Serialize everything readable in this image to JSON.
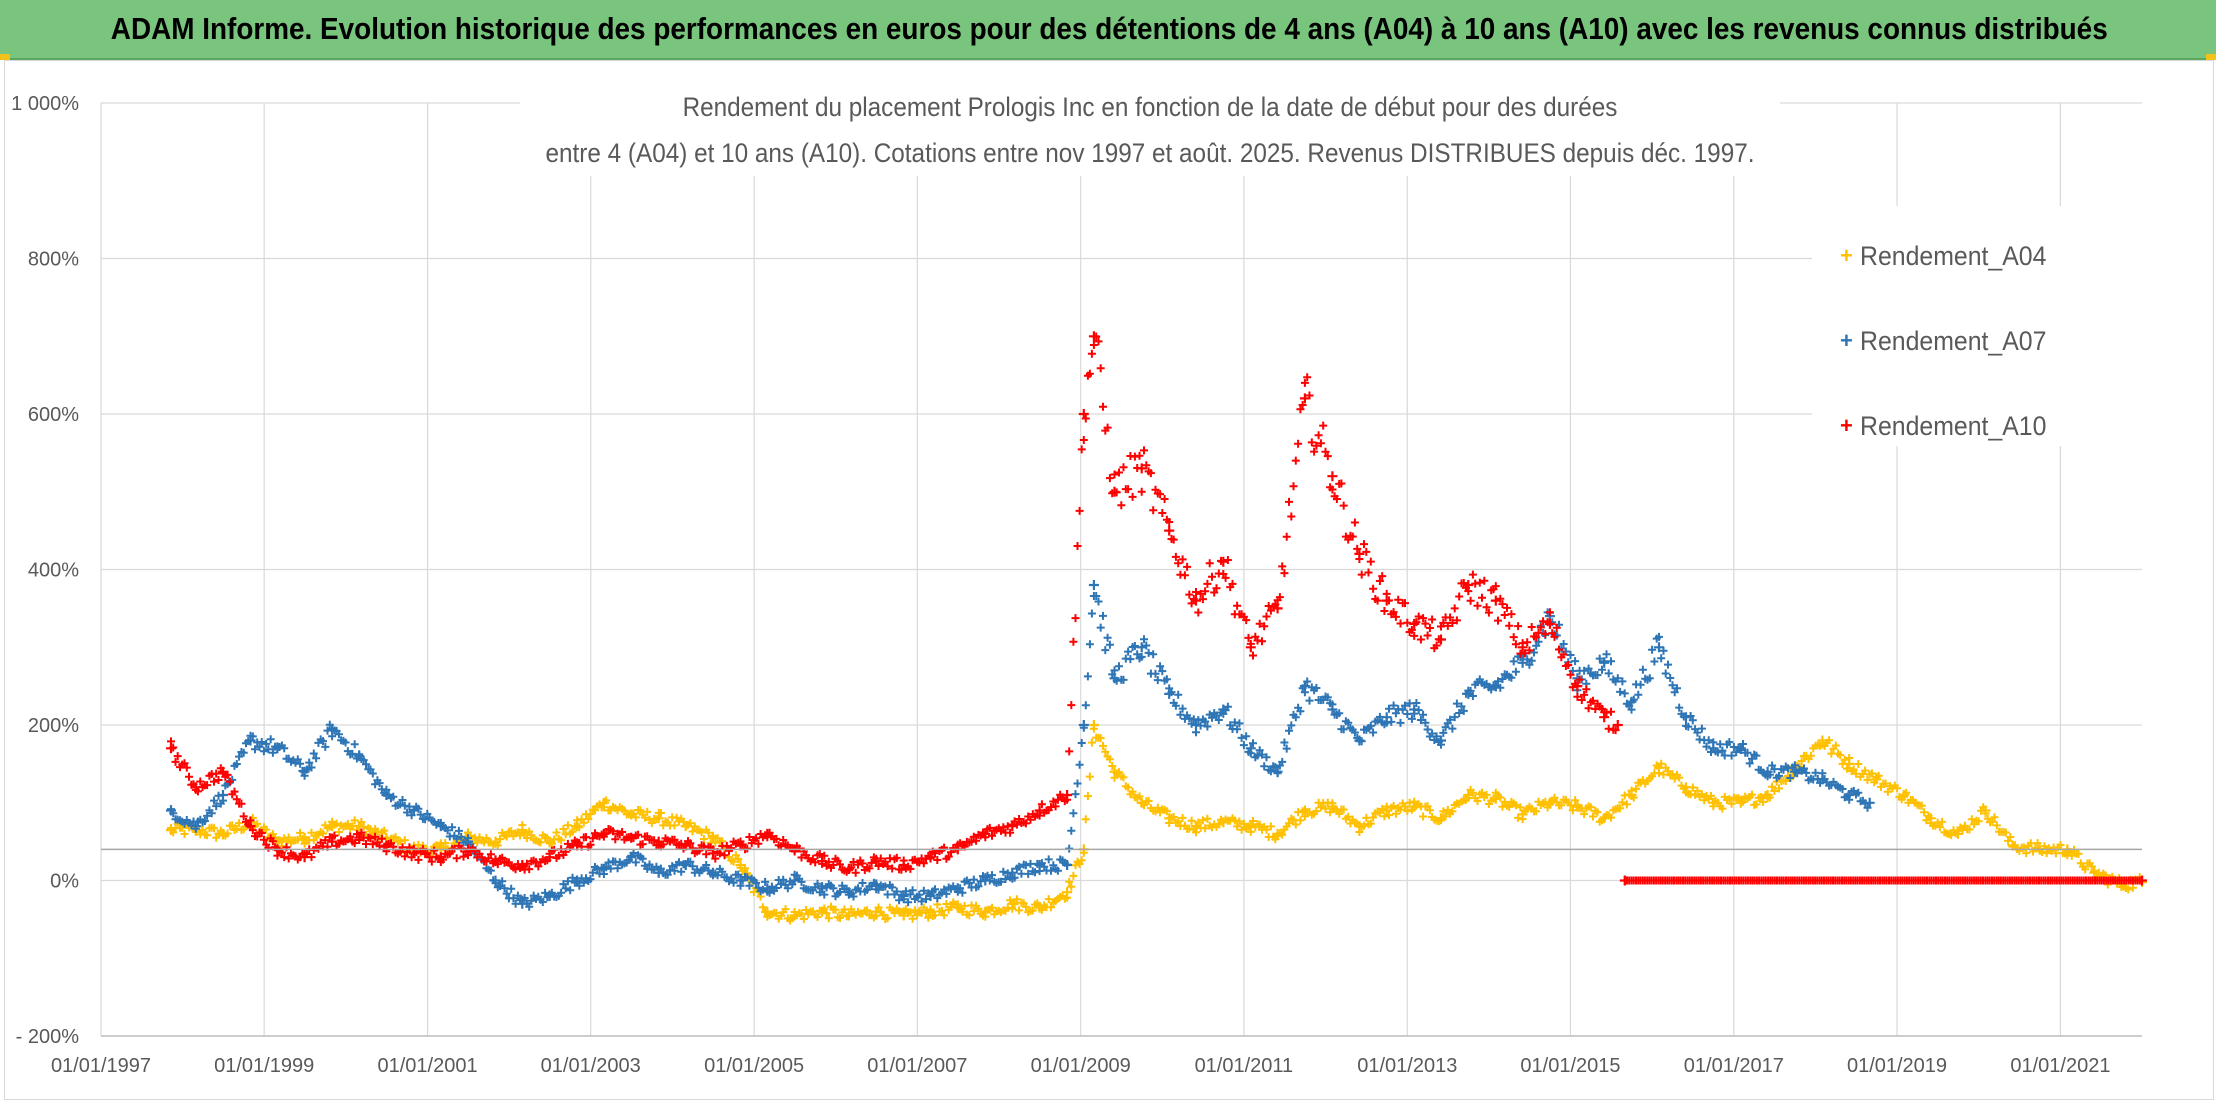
{
  "banner": {
    "title": "ADAM Informe. Evolution historique des performances en euros pour des détentions de 4 ans (A04) à 10 ans (A10) avec les revenus connus distribués"
  },
  "colors": {
    "banner_bg": "#79c57d",
    "series_a04": "#ffc000",
    "series_a07": "#2e75b6",
    "series_a10": "#ff0000",
    "grid": "#d9d9d9",
    "reference_line": "#a6a6a6"
  },
  "chart_data": {
    "type": "scatter",
    "title_line1": "Rendement du placement Prologis Inc en fonction de la date de début pour des durées",
    "title_line2": "entre 4 (A04) et 10 ans (A10). Cotations entre nov 1997 et août. 2025. Revenus DISTRIBUES depuis déc. 1997.",
    "xlabel": "",
    "ylabel": "",
    "x_axis": {
      "type": "date",
      "min": "1997-01-01",
      "max": "2022-01-01",
      "tick_labels": [
        "01/01/1997",
        "01/01/1999",
        "01/01/2001",
        "01/01/2003",
        "01/01/2005",
        "01/01/2007",
        "01/01/2009",
        "01/01/2011",
        "01/01/2013",
        "01/01/2015",
        "01/01/2017",
        "01/01/2019",
        "01/01/2021"
      ]
    },
    "y_axis": {
      "min": -200,
      "max": 1000,
      "unit": "%",
      "tick_values": [
        -200,
        0,
        200,
        400,
        600,
        800,
        1000
      ],
      "tick_labels": [
        "- 200%",
        "0%",
        "200%",
        "400%",
        "600%",
        "800%",
        "1 000%"
      ]
    },
    "grid": true,
    "reference_line_y": 40,
    "legend": {
      "position": "top-right",
      "entries": [
        "Rendement_A04",
        "Rendement_A07",
        "Rendement_A10"
      ]
    },
    "series": [
      {
        "name": "Rendement_A04",
        "color": "#ffc000",
        "points": [
          [
            "1997-11-10",
            65
          ],
          [
            "1998-03-01",
            65
          ],
          [
            "1998-07-01",
            60
          ],
          [
            "1998-11-01",
            75
          ],
          [
            "1999-03-01",
            50
          ],
          [
            "1999-07-01",
            55
          ],
          [
            "1999-11-01",
            70
          ],
          [
            "2000-03-01",
            70
          ],
          [
            "2000-07-01",
            55
          ],
          [
            "2000-11-01",
            40
          ],
          [
            "2001-03-01",
            40
          ],
          [
            "2001-07-01",
            55
          ],
          [
            "2001-11-01",
            50
          ],
          [
            "2002-03-01",
            65
          ],
          [
            "2002-07-01",
            50
          ],
          [
            "2002-11-01",
            70
          ],
          [
            "2003-03-01",
            100
          ],
          [
            "2003-07-01",
            85
          ],
          [
            "2003-11-01",
            80
          ],
          [
            "2004-03-01",
            70
          ],
          [
            "2004-07-01",
            55
          ],
          [
            "2004-11-01",
            20
          ],
          [
            "2005-03-01",
            -40
          ],
          [
            "2005-07-01",
            -45
          ],
          [
            "2005-11-01",
            -40
          ],
          [
            "2006-03-01",
            -45
          ],
          [
            "2006-07-01",
            -40
          ],
          [
            "2006-11-01",
            -45
          ],
          [
            "2007-03-01",
            -40
          ],
          [
            "2007-07-01",
            -35
          ],
          [
            "2007-11-01",
            -40
          ],
          [
            "2008-03-01",
            -30
          ],
          [
            "2008-07-01",
            -35
          ],
          [
            "2008-11-01",
            -15
          ],
          [
            "2009-01-15",
            40
          ],
          [
            "2009-03-01",
            200
          ],
          [
            "2009-06-01",
            140
          ],
          [
            "2009-10-01",
            100
          ],
          [
            "2010-02-01",
            80
          ],
          [
            "2010-06-01",
            70
          ],
          [
            "2010-10-01",
            75
          ],
          [
            "2011-02-01",
            70
          ],
          [
            "2011-06-01",
            60
          ],
          [
            "2011-10-01",
            90
          ],
          [
            "2012-02-01",
            95
          ],
          [
            "2012-06-01",
            70
          ],
          [
            "2012-10-01",
            90
          ],
          [
            "2013-02-01",
            95
          ],
          [
            "2013-06-01",
            80
          ],
          [
            "2013-10-01",
            110
          ],
          [
            "2014-02-01",
            105
          ],
          [
            "2014-06-01",
            85
          ],
          [
            "2014-10-01",
            100
          ],
          [
            "2015-02-01",
            95
          ],
          [
            "2015-06-01",
            80
          ],
          [
            "2015-10-01",
            110
          ],
          [
            "2016-02-01",
            145
          ],
          [
            "2016-06-01",
            120
          ],
          [
            "2016-10-01",
            100
          ],
          [
            "2017-02-01",
            100
          ],
          [
            "2017-06-01",
            110
          ],
          [
            "2017-10-01",
            145
          ],
          [
            "2018-02-01",
            180
          ],
          [
            "2018-06-01",
            150
          ],
          [
            "2018-10-01",
            130
          ],
          [
            "2019-02-01",
            110
          ],
          [
            "2019-06-01",
            80
          ],
          [
            "2019-10-01",
            60
          ],
          [
            "2020-02-01",
            90
          ],
          [
            "2020-06-01",
            45
          ],
          [
            "2020-10-01",
            40
          ],
          [
            "2021-02-01",
            40
          ],
          [
            "2021-06-01",
            10
          ],
          [
            "2021-10-01",
            -5
          ],
          [
            "2022-01-01",
            -2
          ]
        ]
      },
      {
        "name": "Rendement_A07",
        "color": "#2e75b6",
        "points": [
          [
            "1997-11-10",
            90
          ],
          [
            "1998-03-01",
            70
          ],
          [
            "1998-07-01",
            110
          ],
          [
            "1998-11-01",
            180
          ],
          [
            "1999-03-01",
            170
          ],
          [
            "1999-07-01",
            140
          ],
          [
            "1999-11-01",
            195
          ],
          [
            "2000-03-01",
            160
          ],
          [
            "2000-07-01",
            110
          ],
          [
            "2000-11-01",
            90
          ],
          [
            "2001-03-01",
            70
          ],
          [
            "2001-07-01",
            50
          ],
          [
            "2001-11-01",
            0
          ],
          [
            "2002-03-01",
            -30
          ],
          [
            "2002-07-01",
            -20
          ],
          [
            "2002-11-01",
            0
          ],
          [
            "2003-03-01",
            15
          ],
          [
            "2003-07-01",
            30
          ],
          [
            "2003-11-01",
            10
          ],
          [
            "2004-03-01",
            20
          ],
          [
            "2004-07-01",
            10
          ],
          [
            "2004-11-01",
            0
          ],
          [
            "2005-03-01",
            -10
          ],
          [
            "2005-07-01",
            0
          ],
          [
            "2005-11-01",
            -10
          ],
          [
            "2006-03-01",
            -15
          ],
          [
            "2006-07-01",
            -5
          ],
          [
            "2006-11-01",
            -20
          ],
          [
            "2007-03-01",
            -20
          ],
          [
            "2007-07-01",
            -10
          ],
          [
            "2007-11-01",
            0
          ],
          [
            "2008-03-01",
            10
          ],
          [
            "2008-07-01",
            20
          ],
          [
            "2008-11-01",
            20
          ],
          [
            "2009-01-15",
            200
          ],
          [
            "2009-03-01",
            380
          ],
          [
            "2009-06-01",
            260
          ],
          [
            "2009-10-01",
            300
          ],
          [
            "2010-02-01",
            240
          ],
          [
            "2010-06-01",
            200
          ],
          [
            "2010-10-01",
            220
          ],
          [
            "2011-02-01",
            170
          ],
          [
            "2011-06-01",
            140
          ],
          [
            "2011-10-01",
            250
          ],
          [
            "2012-02-01",
            220
          ],
          [
            "2012-06-01",
            180
          ],
          [
            "2012-10-01",
            210
          ],
          [
            "2013-02-01",
            220
          ],
          [
            "2013-06-01",
            180
          ],
          [
            "2013-10-01",
            240
          ],
          [
            "2014-02-01",
            250
          ],
          [
            "2014-06-01",
            280
          ],
          [
            "2014-10-01",
            340
          ],
          [
            "2015-02-01",
            260
          ],
          [
            "2015-06-01",
            280
          ],
          [
            "2015-10-01",
            230
          ],
          [
            "2016-02-01",
            300
          ],
          [
            "2016-06-01",
            210
          ],
          [
            "2016-10-01",
            170
          ],
          [
            "2017-02-01",
            170
          ],
          [
            "2017-06-01",
            140
          ],
          [
            "2017-10-01",
            140
          ],
          [
            "2018-02-01",
            130
          ],
          [
            "2018-06-01",
            110
          ],
          [
            "2018-09-01",
            100
          ]
        ]
      },
      {
        "name": "Rendement_A10",
        "color": "#ff0000",
        "points": [
          [
            "1997-11-10",
            170
          ],
          [
            "1998-03-01",
            120
          ],
          [
            "1998-07-01",
            140
          ],
          [
            "1998-11-01",
            70
          ],
          [
            "1999-03-01",
            40
          ],
          [
            "1999-07-01",
            30
          ],
          [
            "1999-11-01",
            50
          ],
          [
            "2000-03-01",
            55
          ],
          [
            "2000-07-01",
            45
          ],
          [
            "2000-11-01",
            35
          ],
          [
            "2001-03-01",
            30
          ],
          [
            "2001-07-01",
            40
          ],
          [
            "2001-11-01",
            25
          ],
          [
            "2002-03-01",
            20
          ],
          [
            "2002-07-01",
            30
          ],
          [
            "2002-11-01",
            45
          ],
          [
            "2003-03-01",
            60
          ],
          [
            "2003-07-01",
            55
          ],
          [
            "2003-11-01",
            50
          ],
          [
            "2004-03-01",
            45
          ],
          [
            "2004-07-01",
            35
          ],
          [
            "2004-11-01",
            45
          ],
          [
            "2005-03-01",
            60
          ],
          [
            "2005-07-01",
            40
          ],
          [
            "2005-11-01",
            25
          ],
          [
            "2006-03-01",
            15
          ],
          [
            "2006-07-01",
            25
          ],
          [
            "2006-11-01",
            20
          ],
          [
            "2007-03-01",
            30
          ],
          [
            "2007-07-01",
            40
          ],
          [
            "2007-11-01",
            60
          ],
          [
            "2008-03-01",
            70
          ],
          [
            "2008-07-01",
            90
          ],
          [
            "2008-11-01",
            110
          ],
          [
            "2009-01-15",
            600
          ],
          [
            "2009-03-01",
            700
          ],
          [
            "2009-06-01",
            500
          ],
          [
            "2009-10-01",
            530
          ],
          [
            "2010-02-01",
            450
          ],
          [
            "2010-06-01",
            360
          ],
          [
            "2010-10-01",
            410
          ],
          [
            "2011-02-01",
            300
          ],
          [
            "2011-06-01",
            350
          ],
          [
            "2011-10-01",
            620
          ],
          [
            "2012-02-01",
            520
          ],
          [
            "2012-06-01",
            420
          ],
          [
            "2012-10-01",
            360
          ],
          [
            "2013-02-01",
            330
          ],
          [
            "2013-06-01",
            310
          ],
          [
            "2013-10-01",
            380
          ],
          [
            "2014-02-01",
            360
          ],
          [
            "2014-06-01",
            300
          ],
          [
            "2014-10-01",
            330
          ],
          [
            "2015-02-01",
            250
          ],
          [
            "2015-06-01",
            210
          ],
          [
            "2015-08-01",
            200
          ]
        ]
      },
      {
        "name": "",
        "color": "#ff0000",
        "points": [
          [
            "2015-09-01",
            0
          ],
          [
            "2022-01-01",
            0
          ]
        ]
      }
    ]
  }
}
